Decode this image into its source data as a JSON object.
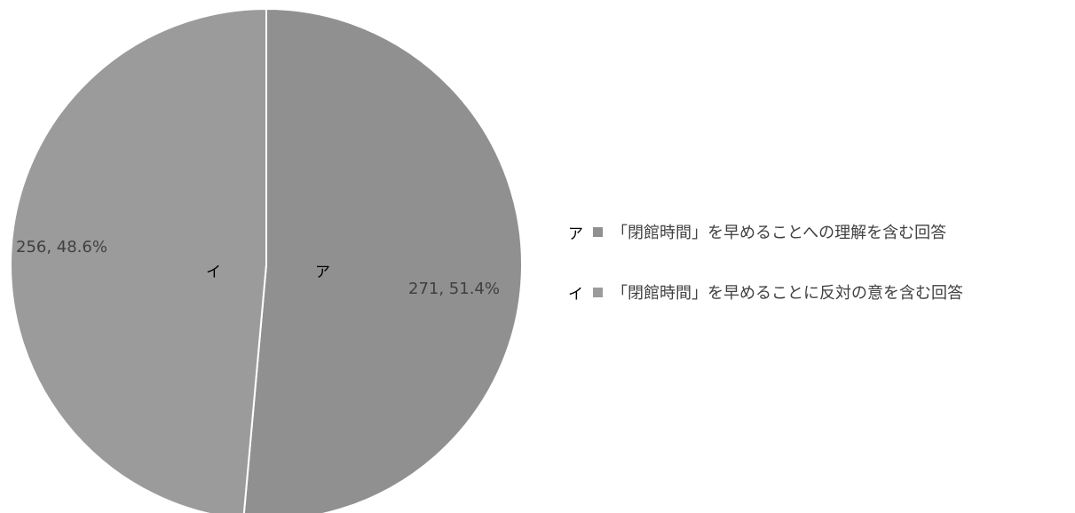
{
  "chart_data": {
    "type": "pie",
    "slices": [
      {
        "marker": "ア",
        "legend": "「閉館時間」を早めることへの理解を含む回答",
        "value": 271,
        "label": "271, 51.4%",
        "color": "#909090"
      },
      {
        "marker": "イ",
        "legend": "「閉館時間」を早めることに反対の意を含む回答",
        "value": 256,
        "label": "256, 48.6%",
        "color": "#9b9b9b"
      }
    ],
    "legend_position": "right"
  }
}
